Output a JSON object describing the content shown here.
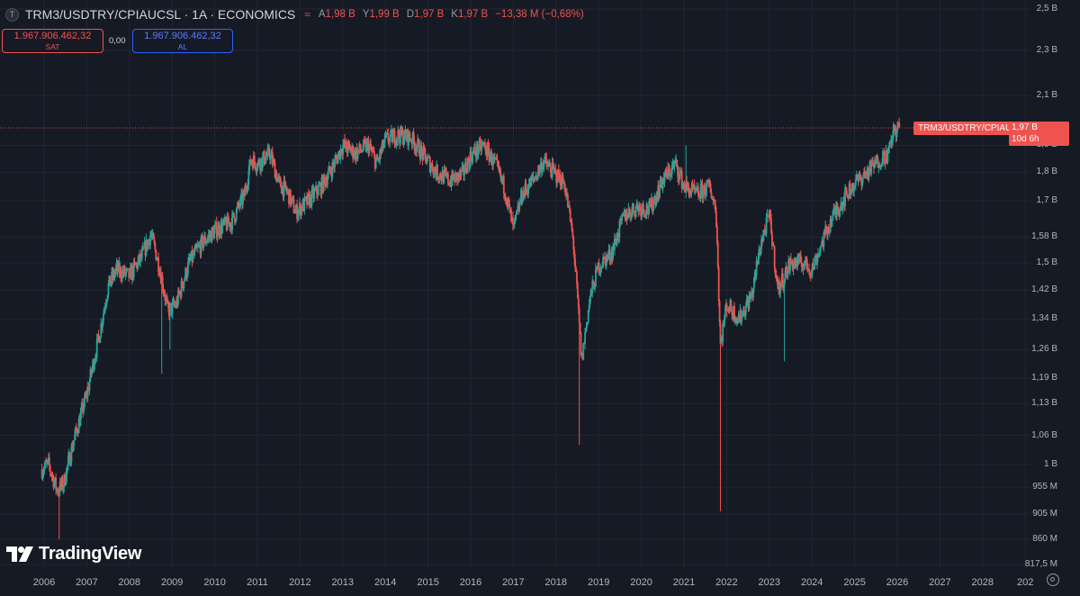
{
  "header": {
    "icon_letter": "T",
    "title": "TRM3/USDTRY/CPIAUCSL · 1A · ECONOMICS",
    "wave_icon": "≈",
    "ohlc": [
      {
        "label": "A",
        "value": "1,98 B"
      },
      {
        "label": "Y",
        "value": "1,99 B"
      },
      {
        "label": "D",
        "value": "1,97 B"
      },
      {
        "label": "K",
        "value": "1,97 B"
      },
      {
        "label": "",
        "value": "−13,38 M (−0,68%)"
      }
    ]
  },
  "trade": {
    "sell_price": "1.967.906.462,32",
    "sell_label": "SAT",
    "spread": "0,00",
    "buy_price": "1.967.906.462,32",
    "buy_label": "AL"
  },
  "logo_text": "TradingView",
  "last_price": {
    "symbol": "TRM3/USDTRY/CPIAUCSL",
    "value": "1,97 B",
    "countdown": "10d 6h"
  },
  "colors": {
    "background": "#161a25",
    "up": "#26a69a",
    "down": "#ef5350",
    "grid": "#232632"
  },
  "chart_data": {
    "type": "candlestick",
    "scale": "log",
    "y_ticks": [
      {
        "label": "2,5 B",
        "value": 2500000000
      },
      {
        "label": "2,3 B",
        "value": 2300000000
      },
      {
        "label": "2,1 B",
        "value": 2100000000
      },
      {
        "label": "1,9 B",
        "value": 1900000000
      },
      {
        "label": "1,8 B",
        "value": 1800000000
      },
      {
        "label": "1,7 B",
        "value": 1700000000
      },
      {
        "label": "1,58 B",
        "value": 1580000000
      },
      {
        "label": "1,5 B",
        "value": 1500000000
      },
      {
        "label": "1,42 B",
        "value": 1420000000
      },
      {
        "label": "1,34 B",
        "value": 1340000000
      },
      {
        "label": "1,26 B",
        "value": 1260000000
      },
      {
        "label": "1,19 B",
        "value": 1190000000
      },
      {
        "label": "1,13 B",
        "value": 1130000000
      },
      {
        "label": "1,06 B",
        "value": 1060000000
      },
      {
        "label": "1 B",
        "value": 1000000000
      },
      {
        "label": "955 M",
        "value": 955000000
      },
      {
        "label": "905 M",
        "value": 905000000
      },
      {
        "label": "860 M",
        "value": 860000000
      },
      {
        "label": "817,5 M",
        "value": 817500000
      }
    ],
    "x_ticks": [
      "2006",
      "2007",
      "2008",
      "2009",
      "2010",
      "2011",
      "2012",
      "2013",
      "2014",
      "2015",
      "2016",
      "2017",
      "2018",
      "2019",
      "2020",
      "2021",
      "2022",
      "2023",
      "2024",
      "2025",
      "2026",
      "2027",
      "2028",
      "202"
    ],
    "x_range": [
      2005.9,
      2028.8
    ],
    "ylim": [
      810000000,
      2560000000
    ],
    "grid": true,
    "anchors": [
      [
        2005.95,
        0.99
      ],
      [
        2006.1,
        1.0
      ],
      [
        2006.3,
        0.95
      ],
      [
        2006.45,
        0.96
      ],
      [
        2006.7,
        1.05
      ],
      [
        2007.0,
        1.15
      ],
      [
        2007.3,
        1.3
      ],
      [
        2007.5,
        1.43
      ],
      [
        2007.7,
        1.48
      ],
      [
        2008.0,
        1.46
      ],
      [
        2008.3,
        1.52
      ],
      [
        2008.5,
        1.59
      ],
      [
        2008.7,
        1.49
      ],
      [
        2008.9,
        1.36
      ],
      [
        2009.1,
        1.38
      ],
      [
        2009.4,
        1.5
      ],
      [
        2009.7,
        1.56
      ],
      [
        2010.0,
        1.6
      ],
      [
        2010.4,
        1.63
      ],
      [
        2010.7,
        1.72
      ],
      [
        2010.85,
        1.85
      ],
      [
        2011.0,
        1.83
      ],
      [
        2011.3,
        1.87
      ],
      [
        2011.5,
        1.76
      ],
      [
        2011.7,
        1.73
      ],
      [
        2011.9,
        1.66
      ],
      [
        2012.2,
        1.7
      ],
      [
        2012.5,
        1.75
      ],
      [
        2012.8,
        1.83
      ],
      [
        2013.0,
        1.9
      ],
      [
        2013.3,
        1.87
      ],
      [
        2013.6,
        1.9
      ],
      [
        2013.8,
        1.83
      ],
      [
        2014.0,
        1.92
      ],
      [
        2014.3,
        1.94
      ],
      [
        2014.6,
        1.93
      ],
      [
        2014.9,
        1.86
      ],
      [
        2015.2,
        1.8
      ],
      [
        2015.5,
        1.77
      ],
      [
        2015.8,
        1.79
      ],
      [
        2016.0,
        1.86
      ],
      [
        2016.3,
        1.9
      ],
      [
        2016.6,
        1.82
      ],
      [
        2016.8,
        1.74
      ],
      [
        2017.0,
        1.6
      ],
      [
        2017.2,
        1.72
      ],
      [
        2017.5,
        1.78
      ],
      [
        2017.7,
        1.84
      ],
      [
        2018.0,
        1.79
      ],
      [
        2018.2,
        1.76
      ],
      [
        2018.4,
        1.57
      ],
      [
        2018.6,
        1.23
      ],
      [
        2018.8,
        1.4
      ],
      [
        2019.0,
        1.49
      ],
      [
        2019.3,
        1.53
      ],
      [
        2019.6,
        1.65
      ],
      [
        2019.9,
        1.68
      ],
      [
        2020.2,
        1.67
      ],
      [
        2020.5,
        1.77
      ],
      [
        2020.8,
        1.83
      ],
      [
        2021.0,
        1.75
      ],
      [
        2021.3,
        1.72
      ],
      [
        2021.6,
        1.75
      ],
      [
        2021.75,
        1.67
      ],
      [
        2021.85,
        1.27
      ],
      [
        2022.0,
        1.38
      ],
      [
        2022.3,
        1.34
      ],
      [
        2022.6,
        1.41
      ],
      [
        2022.8,
        1.56
      ],
      [
        2023.0,
        1.65
      ],
      [
        2023.2,
        1.42
      ],
      [
        2023.5,
        1.5
      ],
      [
        2023.8,
        1.5
      ],
      [
        2024.0,
        1.48
      ],
      [
        2024.2,
        1.55
      ],
      [
        2024.5,
        1.65
      ],
      [
        2024.8,
        1.72
      ],
      [
        2025.0,
        1.76
      ],
      [
        2025.3,
        1.8
      ],
      [
        2025.6,
        1.85
      ],
      [
        2025.8,
        1.87
      ],
      [
        2025.9,
        1.95
      ],
      [
        2026.05,
        1.97
      ]
    ],
    "spikes": [
      {
        "x": 2006.35,
        "low": 0.86
      },
      {
        "x": 2008.75,
        "low": 1.2
      },
      {
        "x": 2008.95,
        "low": 1.26
      },
      {
        "x": 2018.55,
        "low": 1.04
      },
      {
        "x": 2021.85,
        "low": 0.91
      },
      {
        "x": 2023.35,
        "low": 1.23
      },
      {
        "x": 2016.2,
        "high": 1.93
      },
      {
        "x": 2021.05,
        "high": 1.9
      },
      {
        "x": 2014.5,
        "high": 1.96
      }
    ],
    "last_value": 1.968
  }
}
